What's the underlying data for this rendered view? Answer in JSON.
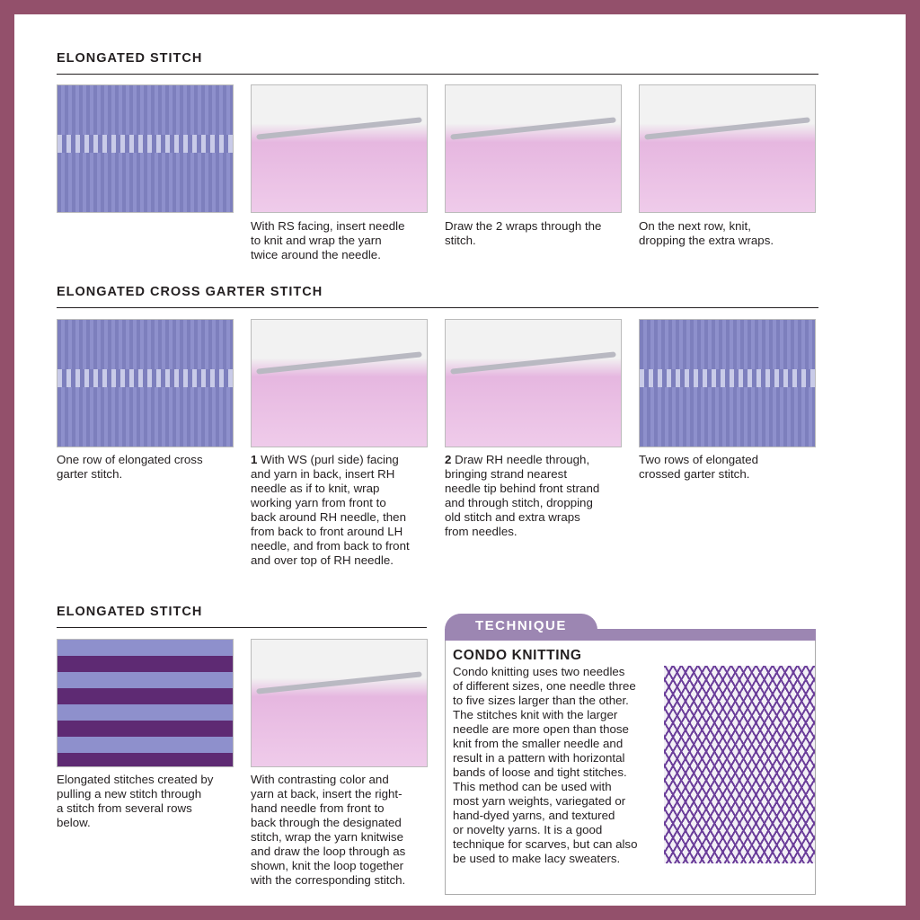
{
  "colors": {
    "border": "#93506b",
    "accent": "#9c86b2",
    "yarn_blue": "#8e90cc",
    "yarn_purple": "#5e2a73"
  },
  "s1": {
    "title": "ELONGATED STITCH",
    "captions": [
      [
        "With RS facing, insert needle",
        "to knit and wrap the yarn",
        "twice around the needle."
      ],
      [
        "Draw the 2 wraps through the",
        "stitch."
      ],
      [
        "On the next row, knit,",
        "dropping the extra wraps."
      ]
    ]
  },
  "s2": {
    "title": "ELONGATED CROSS GARTER STITCH",
    "captions": [
      [
        "One row of elongated cross",
        "garter stitch."
      ],
      [
        "With WS (purl side) facing",
        "and yarn in back, insert RH",
        "needle as if to knit, wrap",
        "working yarn from front to",
        "back around RH needle, then",
        "from back to front around LH",
        "needle, and from back to front",
        "and over top of RH needle."
      ],
      [
        "Draw RH needle through,",
        "bringing strand nearest",
        "needle tip behind front strand",
        "and through stitch, dropping",
        "old stitch and extra wraps",
        "from needles."
      ],
      [
        "Two rows of elongated",
        "crossed garter stitch."
      ]
    ],
    "steps": [
      "1",
      "2"
    ]
  },
  "s3": {
    "title": "ELONGATED STITCH",
    "captions": [
      [
        "Elongated stitches created by",
        "pulling a new stitch through",
        "a stitch from several rows",
        "below."
      ],
      [
        "With contrasting color and",
        "yarn at back, insert the right-",
        "hand needle from front to",
        "back through the designated",
        "stitch, wrap the yarn knitwise",
        "and draw the loop through as",
        "shown, knit the loop together",
        "with the corresponding stitch."
      ]
    ]
  },
  "technique": {
    "tab": "TECHNIQUE",
    "title": "CONDO KNITTING",
    "lines": [
      "Condo knitting uses two needles",
      "of different sizes, one needle three",
      "to five sizes larger than the other.",
      "The stitches knit with the larger",
      "needle are more open than those",
      "knit from the smaller needle and",
      "result in a pattern with horizontal",
      "bands of loose and tight stitches.",
      "This method can be used with",
      "most yarn weights, variegated or",
      "hand-dyed yarns, and textured",
      "or novelty yarns. It is a good",
      "technique for scarves, but can also",
      "be used to make lacy sweaters."
    ]
  }
}
